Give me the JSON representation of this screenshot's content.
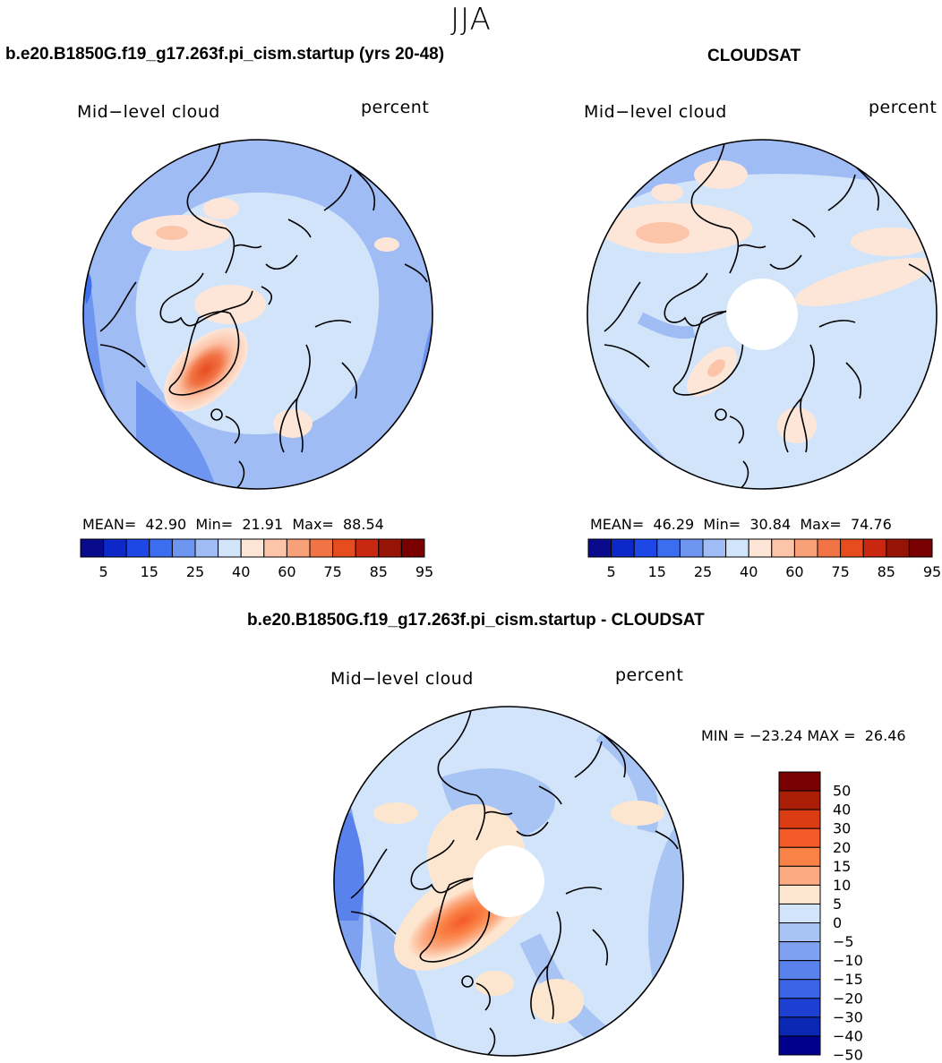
{
  "figure": {
    "season": "JJA"
  },
  "panels": [
    {
      "title": "b.e20.B1850G.f19_g17.263f.pi_cism.startup (yrs 20-48)",
      "left_label": "Mid−level cloud",
      "right_label": "percent",
      "stats": {
        "mean_label": "MEAN=",
        "mean": "42.90",
        "min_label": "Min=",
        "min": "21.91",
        "max_label": "Max=",
        "max": "88.54"
      },
      "has_pole_hole": false
    },
    {
      "title": "CLOUDSAT",
      "left_label": "Mid−level cloud",
      "right_label": "percent",
      "stats": {
        "mean_label": "MEAN=",
        "mean": "46.29",
        "min_label": "Min=",
        "min": "30.84",
        "max_label": "Max=",
        "max": "74.76"
      },
      "has_pole_hole": true
    },
    {
      "title": "b.e20.B1850G.f19_g17.263f.pi_cism.startup - CLOUDSAT",
      "left_label": "Mid−level cloud",
      "right_label": "percent",
      "stats": {
        "text": "MIN = −23.24 MAX =  26.46"
      },
      "has_pole_hole": true
    }
  ],
  "colorbar_abs": {
    "colors": [
      "#0a0a8c",
      "#0d28c8",
      "#1e48e6",
      "#3c6ef0",
      "#6e96f0",
      "#a0bcf5",
      "#d2e4fa",
      "#fde6d8",
      "#fcc4a8",
      "#f8a078",
      "#f27446",
      "#e64c1e",
      "#c82810",
      "#961405",
      "#780000"
    ],
    "tick_labels": [
      "5",
      "15",
      "25",
      "40",
      "60",
      "75",
      "85",
      "95"
    ]
  },
  "colorbar_diff": {
    "colors": [
      "#780000",
      "#aa1e08",
      "#dc3c14",
      "#f55a28",
      "#fa8246",
      "#fcaa82",
      "#fde6cf",
      "#d2e4fa",
      "#a8c4f5",
      "#7ea2f0",
      "#5a82ec",
      "#3c64e6",
      "#1e40d2",
      "#0a28b4",
      "#00008c"
    ],
    "tick_labels": [
      "50",
      "40",
      "30",
      "20",
      "15",
      "10",
      "5",
      "0",
      "−5",
      "−10",
      "−15",
      "−20",
      "−30",
      "−40",
      "−50"
    ]
  }
}
